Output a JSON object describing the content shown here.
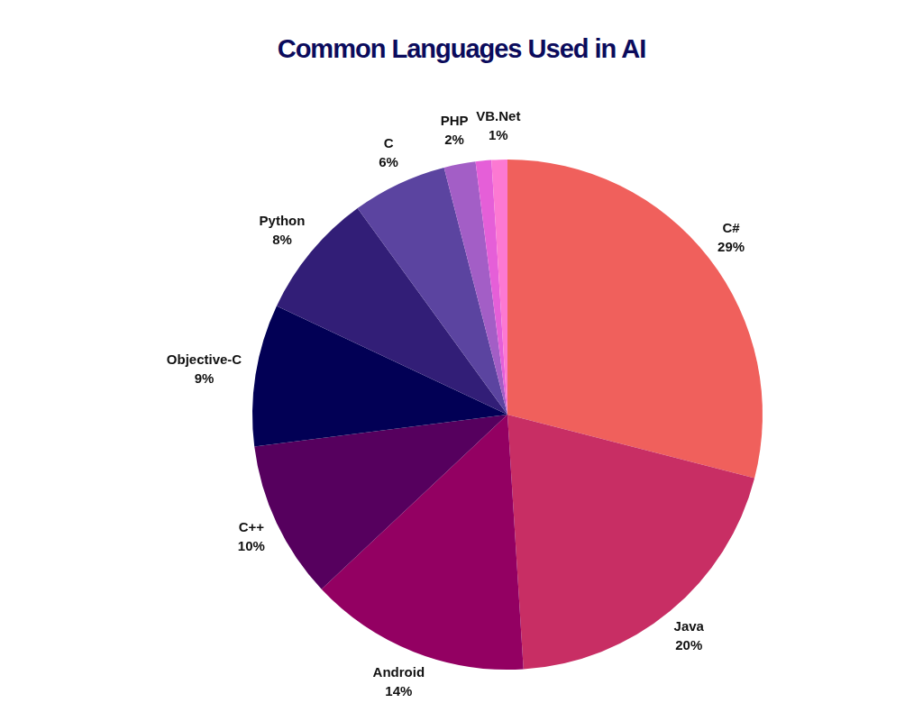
{
  "chart_data": {
    "type": "pie",
    "title": "Common Languages Used in AI",
    "categories": [
      "C#",
      "Java",
      "Android",
      "C++",
      "Objective-C",
      "Python",
      "C",
      "PHP",
      null,
      "VB.Net"
    ],
    "values": [
      29,
      20,
      14,
      10,
      9,
      8,
      6,
      2,
      1,
      1
    ],
    "value_labels": [
      "29%",
      "20%",
      "14%",
      "10%",
      "9%",
      "8%",
      "6%",
      "2%",
      null,
      "1%"
    ],
    "colors": [
      "#f0605c",
      "#c82e64",
      "#930062",
      "#56005e",
      "#020055",
      "#321e77",
      "#5b44a0",
      "#a35ec6",
      "#e55fd8",
      "#fc79d2"
    ],
    "data_labels": true
  }
}
